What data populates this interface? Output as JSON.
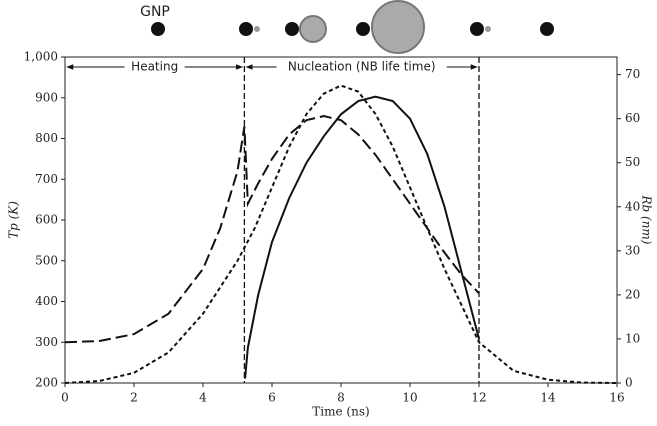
{
  "chart_data": {
    "type": "line",
    "xlabel": "Time (ns)",
    "ylabel": "Tp (K)",
    "y2label": "Rb (nm)",
    "annotations": [
      "GNP",
      "Heating",
      "Nucleation (NB life time)"
    ],
    "xlim": [
      0,
      16
    ],
    "xticks": [
      0,
      2,
      4,
      6,
      8,
      10,
      12,
      14,
      16
    ],
    "ylim": [
      200,
      1000
    ],
    "yticks": [
      200,
      300,
      400,
      500,
      600,
      700,
      800,
      900,
      {
        "value": 1000,
        "label": "1,000"
      }
    ],
    "y2lim": [
      0,
      74
    ],
    "y2ticks": [
      0,
      10,
      20,
      30,
      40,
      50,
      60,
      70
    ],
    "vlines": [
      5.2,
      12
    ],
    "series": [
      {
        "color": "#111",
        "linestyle": "dashed",
        "x": [
          0,
          1,
          2,
          3,
          4,
          4.5,
          5,
          5.2,
          5.3,
          5.6,
          6,
          6.5,
          7,
          7.5,
          8,
          8.5,
          9,
          9.5,
          10,
          10.5,
          11,
          11.5,
          12
        ],
        "values": [
          300,
          303,
          320,
          370,
          480,
          580,
          720,
          830,
          640,
          690,
          750,
          810,
          845,
          855,
          845,
          810,
          760,
          700,
          640,
          580,
          520,
          465,
          420
        ]
      },
      {
        "color": "#111",
        "linestyle": "dotted",
        "x": [
          0,
          1,
          2,
          3,
          4,
          5,
          5.5,
          6,
          6.5,
          7,
          7.5,
          8,
          8.5,
          9,
          9.5,
          10,
          10.5,
          11,
          11.5,
          12,
          13,
          14,
          15,
          16
        ],
        "values": [
          200,
          205,
          225,
          275,
          370,
          500,
          580,
          680,
          780,
          860,
          910,
          930,
          915,
          860,
          780,
          680,
          580,
          480,
          390,
          300,
          230,
          208,
          201,
          200
        ]
      },
      {
        "color": "#111",
        "linestyle": "solid",
        "axis": "y2",
        "x": [
          5.22,
          5.3,
          5.6,
          6,
          6.5,
          7,
          7.5,
          8,
          8.5,
          9,
          9.5,
          10,
          10.5,
          11,
          11.5,
          12
        ],
        "values": [
          1,
          8,
          20,
          32,
          42,
          50,
          56,
          61,
          64,
          65,
          64,
          60,
          52,
          40,
          25,
          10
        ]
      }
    ]
  }
}
